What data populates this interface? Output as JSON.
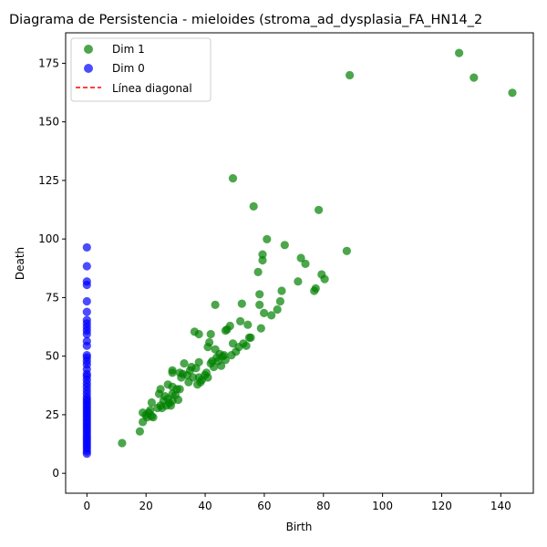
{
  "chart_data": {
    "type": "scatter",
    "title": "Diagrama de Persistencia - mieloides (stroma_ad_dysplasia_FA_HN14_2",
    "xlabel": "Birth",
    "ylabel": "Death",
    "xlim": [
      -7.2,
      151.0
    ],
    "ylim": [
      -8.5,
      188.0
    ],
    "x_ticks": [
      0,
      20,
      40,
      60,
      80,
      100,
      120,
      140
    ],
    "y_ticks": [
      0,
      25,
      50,
      75,
      100,
      125,
      150,
      175
    ],
    "grid": false,
    "legend_position": "top-left",
    "legend": [
      {
        "label": "Dim 1",
        "kind": "marker",
        "color": "#008000"
      },
      {
        "label": "Dim 0",
        "kind": "marker",
        "color": "#0000ff"
      },
      {
        "label": "Línea diagonal",
        "kind": "dashed-line",
        "color": "#ff0000"
      }
    ],
    "series": [
      {
        "name": "Dim 1",
        "color": "#008000",
        "points": [
          [
            11.9,
            12.9
          ],
          [
            17.9,
            17.9
          ],
          [
            18.9,
            21.9
          ],
          [
            18.9,
            25.9
          ],
          [
            19.9,
            24.9
          ],
          [
            20.4,
            23.9
          ],
          [
            20.9,
            25.9
          ],
          [
            21.4,
            26.9
          ],
          [
            21.9,
            24.4
          ],
          [
            21.9,
            30.2
          ],
          [
            22.4,
            23.9
          ],
          [
            23.9,
            27.9
          ],
          [
            24.4,
            33.9
          ],
          [
            24.9,
            28.9
          ],
          [
            24.9,
            35.9
          ],
          [
            25.4,
            27.9
          ],
          [
            25.9,
            30.9
          ],
          [
            26.4,
            32.9
          ],
          [
            26.9,
            28.9
          ],
          [
            27.4,
            31.9
          ],
          [
            27.4,
            37.9
          ],
          [
            27.9,
            29.9
          ],
          [
            28.4,
            28.9
          ],
          [
            28.9,
            30.9
          ],
          [
            28.9,
            33.9
          ],
          [
            28.9,
            36.9
          ],
          [
            28.9,
            42.9
          ],
          [
            28.9,
            43.9
          ],
          [
            29.9,
            33.4
          ],
          [
            30.4,
            35.9
          ],
          [
            30.9,
            31.4
          ],
          [
            31.4,
            35.9
          ],
          [
            31.4,
            42.9
          ],
          [
            31.9,
            40.9
          ],
          [
            32.4,
            42.4
          ],
          [
            32.9,
            46.9
          ],
          [
            33.9,
            41.9
          ],
          [
            34.4,
            38.9
          ],
          [
            34.9,
            43.9
          ],
          [
            35.4,
            45.4
          ],
          [
            35.9,
            40.9
          ],
          [
            36.4,
            60.4
          ],
          [
            36.9,
            44.9
          ],
          [
            37.4,
            37.9
          ],
          [
            37.9,
            40.9
          ],
          [
            37.9,
            47.4
          ],
          [
            37.9,
            59.4
          ],
          [
            38.4,
            38.9
          ],
          [
            38.9,
            39.9
          ],
          [
            39.9,
            41.9
          ],
          [
            40.4,
            42.9
          ],
          [
            40.9,
            40.9
          ],
          [
            40.9,
            53.9
          ],
          [
            41.4,
            55.9
          ],
          [
            41.9,
            46.9
          ],
          [
            41.9,
            59.4
          ],
          [
            42.4,
            47.9
          ],
          [
            42.9,
            45.4
          ],
          [
            43.4,
            52.9
          ],
          [
            43.4,
            71.9
          ],
          [
            43.9,
            49.4
          ],
          [
            44.4,
            47.9
          ],
          [
            44.9,
            50.9
          ],
          [
            45.4,
            45.9
          ],
          [
            45.9,
            49.9
          ],
          [
            46.4,
            50.4
          ],
          [
            46.9,
            60.9
          ],
          [
            46.9,
            48.4
          ],
          [
            47.4,
            61.4
          ],
          [
            48.4,
            62.9
          ],
          [
            48.9,
            50.4
          ],
          [
            49.4,
            55.4
          ],
          [
            49.4,
            125.9
          ],
          [
            50.4,
            51.9
          ],
          [
            51.4,
            53.9
          ],
          [
            51.9,
            64.9
          ],
          [
            52.4,
            72.4
          ],
          [
            52.9,
            55.4
          ],
          [
            53.9,
            54.4
          ],
          [
            54.4,
            63.4
          ],
          [
            54.9,
            57.9
          ],
          [
            55.4,
            57.9
          ],
          [
            56.4,
            113.9
          ],
          [
            57.9,
            85.9
          ],
          [
            58.4,
            76.4
          ],
          [
            58.4,
            71.9
          ],
          [
            58.9,
            61.9
          ],
          [
            59.4,
            90.9
          ],
          [
            59.4,
            93.4
          ],
          [
            59.9,
            68.4
          ],
          [
            60.9,
            99.9
          ],
          [
            62.4,
            67.4
          ],
          [
            64.4,
            69.9
          ],
          [
            65.4,
            73.4
          ],
          [
            65.9,
            77.9
          ],
          [
            66.9,
            97.4
          ],
          [
            71.4,
            81.9
          ],
          [
            72.4,
            91.9
          ],
          [
            73.9,
            89.4
          ],
          [
            76.9,
            77.9
          ],
          [
            77.4,
            78.9
          ],
          [
            78.4,
            112.4
          ],
          [
            79.4,
            84.9
          ],
          [
            80.4,
            82.9
          ],
          [
            87.9,
            94.9
          ],
          [
            88.9,
            169.9
          ],
          [
            125.9,
            179.4
          ],
          [
            130.9,
            168.9
          ],
          [
            143.9,
            162.4
          ]
        ]
      },
      {
        "name": "Dim 0",
        "color": "#0000ff",
        "points": [
          [
            0,
            8.4
          ],
          [
            0,
            9.4
          ],
          [
            0,
            10.4
          ],
          [
            0,
            11.4
          ],
          [
            0,
            12.4
          ],
          [
            0,
            13.4
          ],
          [
            0,
            14.4
          ],
          [
            0,
            15.4
          ],
          [
            0,
            16.4
          ],
          [
            0,
            17.4
          ],
          [
            0,
            18.4
          ],
          [
            0,
            19.4
          ],
          [
            0,
            20.4
          ],
          [
            0,
            21.4
          ],
          [
            0,
            22.4
          ],
          [
            0,
            23.4
          ],
          [
            0,
            24.4
          ],
          [
            0,
            25.4
          ],
          [
            0,
            26.4
          ],
          [
            0,
            27.4
          ],
          [
            0,
            28.4
          ],
          [
            0,
            29.4
          ],
          [
            0,
            30.4
          ],
          [
            0,
            31.4
          ],
          [
            0,
            32.4
          ],
          [
            0,
            33.9
          ],
          [
            0,
            35.4
          ],
          [
            0,
            36.9
          ],
          [
            0,
            38.4
          ],
          [
            0,
            39.9
          ],
          [
            0,
            41.4
          ],
          [
            0,
            42.4
          ],
          [
            0,
            44.4
          ],
          [
            0,
            46.4
          ],
          [
            0,
            47.9
          ],
          [
            0,
            49.4
          ],
          [
            0,
            50.4
          ],
          [
            0,
            54.4
          ],
          [
            0,
            56.4
          ],
          [
            0,
            59.4
          ],
          [
            0,
            60.9
          ],
          [
            0,
            62.4
          ],
          [
            0,
            63.9
          ],
          [
            0,
            65.4
          ],
          [
            0,
            68.9
          ],
          [
            0,
            73.4
          ],
          [
            0,
            80.4
          ],
          [
            0,
            81.9
          ],
          [
            0,
            88.4
          ],
          [
            0,
            96.4
          ]
        ]
      }
    ]
  }
}
